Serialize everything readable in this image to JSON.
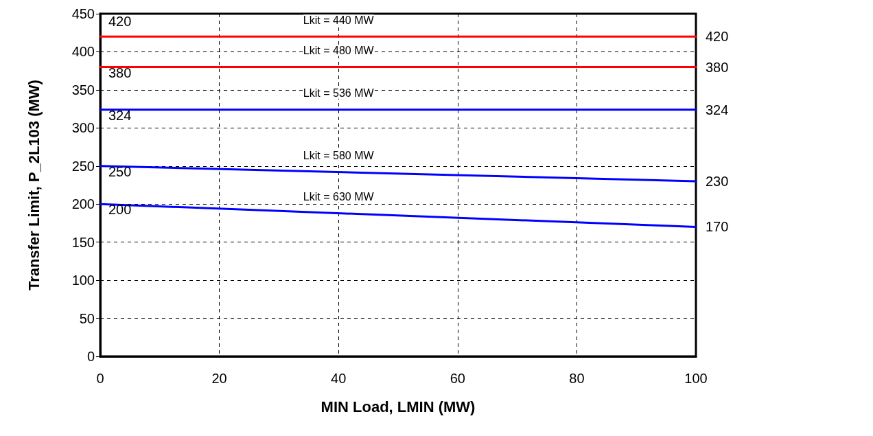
{
  "chart_data": {
    "type": "line",
    "xlabel": "MIN Load, LMIN (MW)",
    "ylabel": "Transfer Limit, P_2L103 (MW)",
    "x": [
      0,
      100
    ],
    "series": [
      {
        "name": "Lkit = 440 MW",
        "color": "#ff0000",
        "values": [
          420,
          420
        ]
      },
      {
        "name": "Lkit = 480 MW",
        "color": "#ff0000",
        "values": [
          380,
          380
        ]
      },
      {
        "name": "Lkit = 536 MW",
        "color": "#0000ff",
        "values": [
          324,
          324
        ]
      },
      {
        "name": "Lkit = 580 MW",
        "color": "#0000ff",
        "values": [
          250,
          230
        ]
      },
      {
        "name": "Lkit = 630 MW",
        "color": "#0000ff",
        "values": [
          200,
          170
        ]
      }
    ],
    "data_labels": true,
    "marker": "none",
    "line_style": "solid",
    "grid": true,
    "xlim": [
      0,
      100
    ],
    "xticks": [
      0,
      20,
      40,
      60,
      80,
      100
    ],
    "ylim": [
      0,
      450
    ],
    "yticks": [
      0,
      50,
      100,
      150,
      200,
      250,
      300,
      350,
      400,
      450
    ]
  }
}
